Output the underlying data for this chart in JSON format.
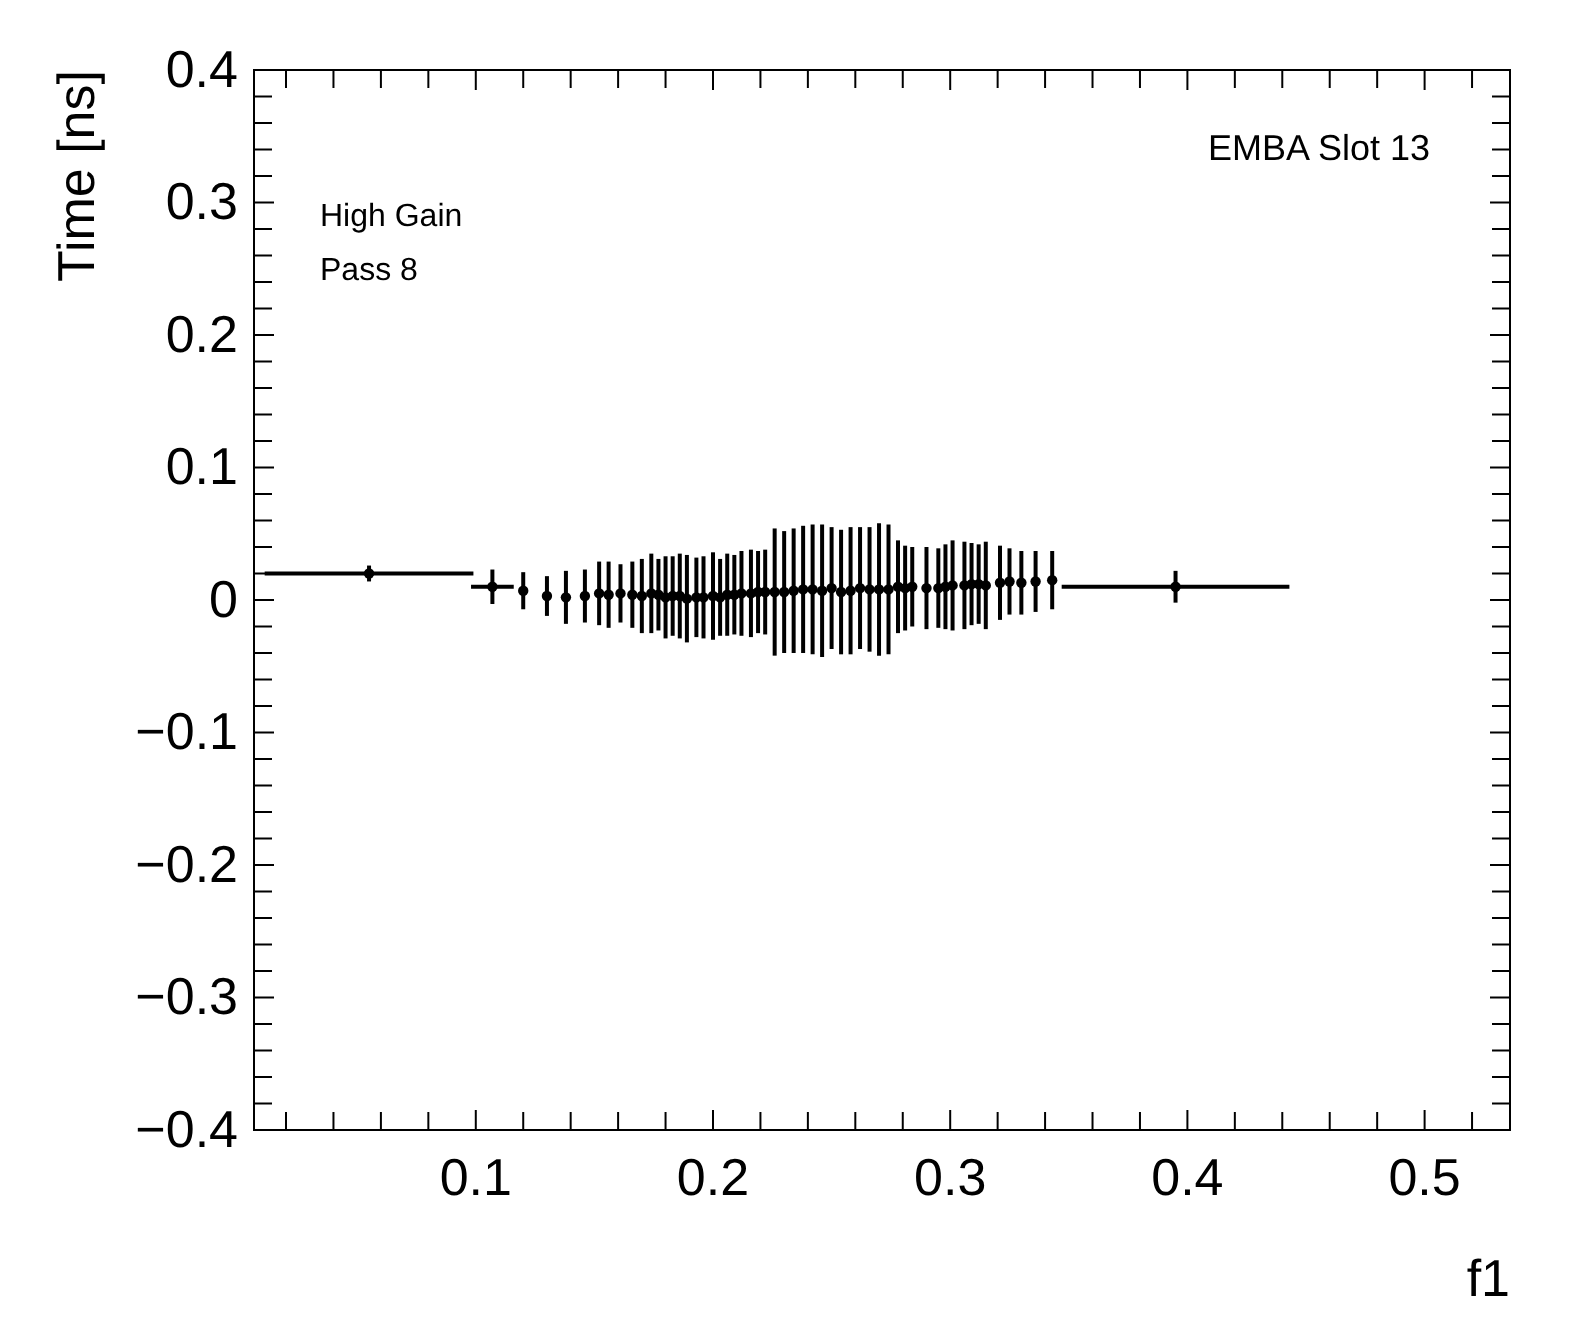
{
  "chart_data": {
    "type": "scatter",
    "xlabel": "f1",
    "ylabel": "Time [ns]",
    "annotations": [
      "EMBA Slot 13",
      "High Gain",
      "Pass 8"
    ],
    "xlim": [
      0.0065,
      0.536
    ],
    "ylim": [
      -0.4,
      0.4
    ],
    "xticks": [
      {
        "value": 0.02,
        "label": null
      },
      {
        "value": 0.04,
        "label": null
      },
      {
        "value": 0.06,
        "label": null
      },
      {
        "value": 0.08,
        "label": null
      },
      0.1,
      {
        "value": 0.12,
        "label": null
      },
      {
        "value": 0.14,
        "label": null
      },
      {
        "value": 0.16,
        "label": null
      },
      {
        "value": 0.18,
        "label": null
      },
      0.2,
      {
        "value": 0.22,
        "label": null
      },
      {
        "value": 0.24,
        "label": null
      },
      {
        "value": 0.26,
        "label": null
      },
      {
        "value": 0.28,
        "label": null
      },
      0.3,
      {
        "value": 0.32,
        "label": null
      },
      {
        "value": 0.34,
        "label": null
      },
      {
        "value": 0.36,
        "label": null
      },
      {
        "value": 0.38,
        "label": null
      },
      0.4,
      {
        "value": 0.42,
        "label": null
      },
      {
        "value": 0.44,
        "label": null
      },
      {
        "value": 0.46,
        "label": null
      },
      {
        "value": 0.48,
        "label": null
      },
      0.5,
      {
        "value": 0.52,
        "label": null
      }
    ],
    "yticks": [
      -0.4,
      {
        "value": -0.38,
        "label": null
      },
      {
        "value": -0.36,
        "label": null
      },
      {
        "value": -0.34,
        "label": null
      },
      {
        "value": -0.32,
        "label": null
      },
      -0.3,
      {
        "value": -0.28,
        "label": null
      },
      {
        "value": -0.26,
        "label": null
      },
      {
        "value": -0.24,
        "label": null
      },
      {
        "value": -0.22,
        "label": null
      },
      -0.2,
      {
        "value": -0.18,
        "label": null
      },
      {
        "value": -0.16,
        "label": null
      },
      {
        "value": -0.14,
        "label": null
      },
      {
        "value": -0.12,
        "label": null
      },
      -0.1,
      {
        "value": -0.08,
        "label": null
      },
      {
        "value": -0.06,
        "label": null
      },
      {
        "value": -0.04,
        "label": null
      },
      {
        "value": -0.02,
        "label": null
      },
      0,
      {
        "value": 0.02,
        "label": null
      },
      {
        "value": 0.04,
        "label": null
      },
      {
        "value": 0.06,
        "label": null
      },
      {
        "value": 0.08,
        "label": null
      },
      0.1,
      {
        "value": 0.12,
        "label": null
      },
      {
        "value": 0.14,
        "label": null
      },
      {
        "value": 0.16,
        "label": null
      },
      {
        "value": 0.18,
        "label": null
      },
      0.2,
      {
        "value": 0.22,
        "label": null
      },
      {
        "value": 0.24,
        "label": null
      },
      {
        "value": 0.26,
        "label": null
      },
      {
        "value": 0.28,
        "label": null
      },
      0.3,
      {
        "value": 0.32,
        "label": null
      },
      {
        "value": 0.34,
        "label": null
      },
      {
        "value": 0.36,
        "label": null
      },
      {
        "value": 0.38,
        "label": null
      },
      0.4
    ],
    "grid": false,
    "marker": "circle",
    "series": [
      {
        "color": "#000000",
        "x": [
          0.055,
          0.107,
          0.12,
          0.13,
          0.138,
          0.146,
          0.152,
          0.156,
          0.161,
          0.166,
          0.17,
          0.174,
          0.177,
          0.18,
          0.183,
          0.186,
          0.189,
          0.193,
          0.196,
          0.2,
          0.203,
          0.206,
          0.209,
          0.212,
          0.216,
          0.219,
          0.222,
          0.226,
          0.23,
          0.234,
          0.238,
          0.242,
          0.246,
          0.25,
          0.254,
          0.258,
          0.262,
          0.266,
          0.27,
          0.274,
          0.278,
          0.281,
          0.284,
          0.29,
          0.295,
          0.298,
          0.301,
          0.306,
          0.309,
          0.312,
          0.315,
          0.321,
          0.325,
          0.33,
          0.336,
          0.343,
          0.395
        ],
        "values": [
          0.02,
          0.01,
          0.007,
          0.003,
          0.002,
          0.003,
          0.005,
          0.004,
          0.005,
          0.004,
          0.003,
          0.005,
          0.004,
          0.002,
          0.003,
          0.003,
          0.001,
          0.002,
          0.002,
          0.003,
          0.002,
          0.004,
          0.004,
          0.005,
          0.005,
          0.006,
          0.006,
          0.006,
          0.006,
          0.007,
          0.008,
          0.008,
          0.007,
          0.009,
          0.006,
          0.007,
          0.009,
          0.008,
          0.008,
          0.008,
          0.01,
          0.009,
          0.01,
          0.009,
          0.009,
          0.01,
          0.011,
          0.011,
          0.012,
          0.012,
          0.011,
          0.013,
          0.014,
          0.013,
          0.014,
          0.015,
          0.01
        ],
        "errors": [
          0.006,
          0.013,
          0.014,
          0.015,
          0.02,
          0.02,
          0.024,
          0.025,
          0.022,
          0.025,
          0.028,
          0.03,
          0.027,
          0.031,
          0.03,
          0.032,
          0.033,
          0.03,
          0.031,
          0.033,
          0.029,
          0.031,
          0.03,
          0.032,
          0.033,
          0.031,
          0.032,
          0.048,
          0.046,
          0.047,
          0.048,
          0.049,
          0.05,
          0.046,
          0.047,
          0.048,
          0.046,
          0.047,
          0.05,
          0.049,
          0.035,
          0.032,
          0.03,
          0.031,
          0.03,
          0.032,
          0.034,
          0.033,
          0.031,
          0.03,
          0.033,
          0.028,
          0.025,
          0.024,
          0.023,
          0.022,
          0.012
        ],
        "xerrors": [
          0.044,
          0.009,
          null,
          null,
          null,
          null,
          null,
          null,
          null,
          null,
          null,
          null,
          null,
          null,
          null,
          null,
          null,
          null,
          null,
          null,
          null,
          null,
          null,
          null,
          null,
          null,
          null,
          null,
          null,
          null,
          null,
          null,
          null,
          null,
          null,
          null,
          null,
          null,
          null,
          null,
          null,
          null,
          null,
          null,
          null,
          null,
          null,
          null,
          null,
          null,
          null,
          null,
          null,
          null,
          null,
          null,
          0.048
        ]
      }
    ]
  }
}
